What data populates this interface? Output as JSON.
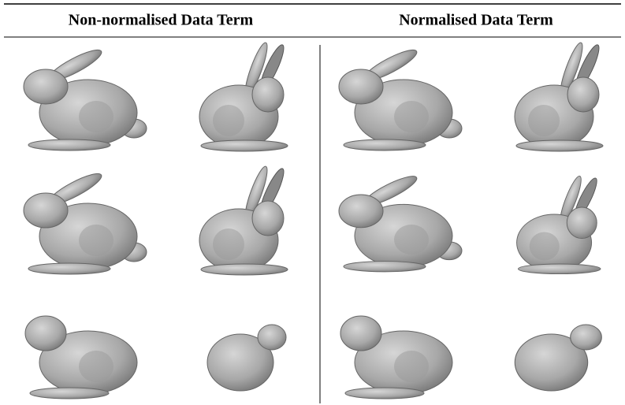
{
  "header": {
    "columns": [
      "Non-normalised Data Term",
      "Normalised Data Term"
    ]
  }
}
